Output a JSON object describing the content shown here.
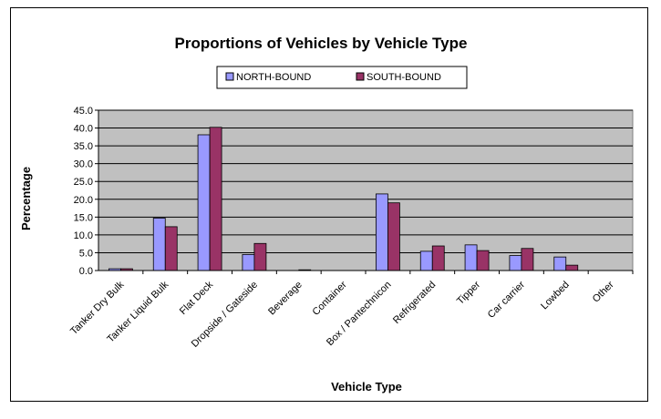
{
  "chart_data": {
    "type": "bar",
    "title": "Proportions of Vehicles by Vehicle Type",
    "xlabel": "Vehicle Type",
    "ylabel": "Percentage",
    "categories": [
      "Tanker Dry Bulk",
      "Tanker Liquid Bulk",
      "Flat Deck",
      "Dropside / Gateside",
      "Beverage",
      "Container",
      "Box / Pantechnicon",
      "Refrigerated",
      "Tipper",
      "Car carrier",
      "Lowbed",
      "Other"
    ],
    "series": [
      {
        "name": "NORTH-BOUND",
        "color": "#9999ff",
        "values": [
          0.5,
          14.7,
          38.1,
          4.5,
          0.0,
          0.0,
          21.5,
          5.4,
          7.2,
          4.2,
          3.8,
          0.0
        ]
      },
      {
        "name": "SOUTH-BOUND",
        "color": "#993366",
        "values": [
          0.5,
          12.3,
          40.2,
          7.6,
          0.2,
          0.0,
          19.0,
          6.9,
          5.6,
          6.2,
          1.5,
          0.0
        ]
      }
    ],
    "ylim": [
      0,
      45
    ],
    "yticks": [
      "0.0",
      "5.0",
      "10.0",
      "15.0",
      "20.0",
      "25.0",
      "30.0",
      "35.0",
      "40.0",
      "45.0"
    ],
    "grid": true,
    "plot_background": "#c0c0c0",
    "legend_position": "top"
  }
}
